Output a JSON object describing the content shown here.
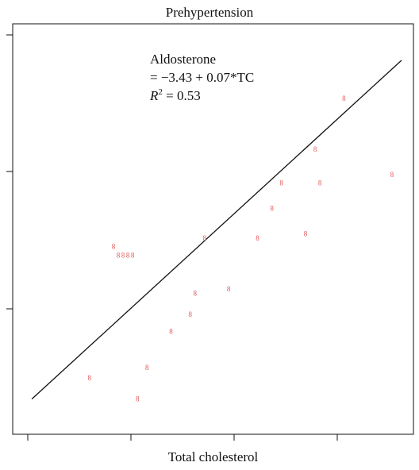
{
  "chart_data": {
    "type": "scatter",
    "title": "Prehypertension",
    "xlabel": "Total cholesterol",
    "ylabel": "",
    "grid": false,
    "marker_glyph": "8",
    "marker_color": "#e05555",
    "line_color": "#111111",
    "annotation": {
      "line1": "Aldosterone",
      "line2": "= −3.43 + 0.07*TC",
      "r2_symbol": "R",
      "r2_sup": "2",
      "r2_value": " = 0.53"
    },
    "regression": {
      "intercept": -3.43,
      "slope": 0.07
    },
    "points": [
      {
        "x": 0.95,
        "y": 2.15
      },
      {
        "x": 1.0,
        "y": 2.05
      },
      {
        "x": 1.05,
        "y": 2.05
      },
      {
        "x": 1.1,
        "y": 2.05
      },
      {
        "x": 1.15,
        "y": 2.05
      },
      {
        "x": 1.55,
        "y": 1.15
      },
      {
        "x": 1.3,
        "y": 0.72
      },
      {
        "x": 0.7,
        "y": 0.6
      },
      {
        "x": 1.2,
        "y": 0.35
      },
      {
        "x": 1.75,
        "y": 1.35
      },
      {
        "x": 1.8,
        "y": 1.6
      },
      {
        "x": 1.9,
        "y": 2.25
      },
      {
        "x": 2.15,
        "y": 1.65
      },
      {
        "x": 2.6,
        "y": 2.6
      },
      {
        "x": 2.45,
        "y": 2.25
      },
      {
        "x": 2.7,
        "y": 2.9
      },
      {
        "x": 2.95,
        "y": 2.3
      },
      {
        "x": 3.05,
        "y": 3.3
      },
      {
        "x": 3.35,
        "y": 3.9
      },
      {
        "x": 3.1,
        "y": 2.9
      },
      {
        "x": 3.85,
        "y": 3.0
      }
    ]
  }
}
